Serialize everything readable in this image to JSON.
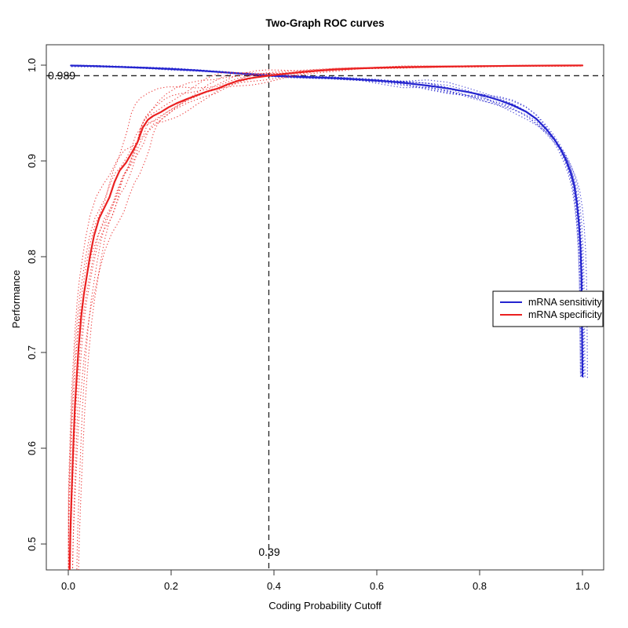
{
  "chart_data": {
    "type": "line",
    "title": "Two-Graph ROC curves",
    "xlabel": "Coding Probability Cutoff",
    "ylabel": "Performance",
    "xlim": [
      0.0,
      1.0
    ],
    "ylim": [
      0.5,
      1.0
    ],
    "grid": false,
    "background": "#ffffff",
    "x_tick_values": [
      0.0,
      0.2,
      0.4,
      0.6,
      0.8,
      1.0
    ],
    "x_tick_labels": [
      "0.0",
      "0.2",
      "0.4",
      "0.6",
      "0.8",
      "1.0"
    ],
    "y_tick_values": [
      0.5,
      0.6,
      0.7,
      0.8,
      0.9,
      1.0
    ],
    "y_tick_labels": [
      "0.5",
      "0.6",
      "0.7",
      "0.8",
      "0.9",
      "1.0"
    ],
    "annotations": {
      "hline": {
        "y": 0.989,
        "label": "0.989",
        "style": "dashed",
        "color": "#222222"
      },
      "vline": {
        "x": 0.39,
        "label": "0.39",
        "style": "dashed",
        "color": "#222222"
      }
    },
    "legend": {
      "position": "right-middle",
      "entries": [
        {
          "label": "mRNA sensitivity",
          "color": "#2424cf"
        },
        {
          "label": "mRNA specificity",
          "color": "#ea2020"
        }
      ]
    },
    "series": [
      {
        "name": "mRNA sensitivity",
        "color": "#2424cf",
        "mean_style": "solid",
        "points": [
          [
            0.005,
            0.9996
          ],
          [
            0.05,
            0.999
          ],
          [
            0.1,
            0.9981
          ],
          [
            0.15,
            0.9972
          ],
          [
            0.2,
            0.996
          ],
          [
            0.25,
            0.9945
          ],
          [
            0.3,
            0.9926
          ],
          [
            0.35,
            0.9906
          ],
          [
            0.39,
            0.989
          ],
          [
            0.43,
            0.9882
          ],
          [
            0.47,
            0.9874
          ],
          [
            0.51,
            0.9866
          ],
          [
            0.55,
            0.9856
          ],
          [
            0.6,
            0.984
          ],
          [
            0.65,
            0.9816
          ],
          [
            0.7,
            0.9786
          ],
          [
            0.74,
            0.9756
          ],
          [
            0.78,
            0.9716
          ],
          [
            0.81,
            0.968
          ],
          [
            0.84,
            0.963
          ],
          [
            0.865,
            0.958
          ],
          [
            0.89,
            0.9515
          ],
          [
            0.91,
            0.944
          ],
          [
            0.93,
            0.933
          ],
          [
            0.945,
            0.923
          ],
          [
            0.958,
            0.912
          ],
          [
            0.968,
            0.901
          ],
          [
            0.977,
            0.888
          ],
          [
            0.984,
            0.874
          ],
          [
            0.989,
            0.856
          ],
          [
            0.993,
            0.835
          ],
          [
            0.996,
            0.81
          ],
          [
            0.998,
            0.78
          ],
          [
            0.999,
            0.735
          ],
          [
            1.0,
            0.675
          ]
        ],
        "replicates": {
          "count": 9,
          "seed": 11,
          "style": "dotted",
          "spread": {
            "base_x": 0.002,
            "x_amp": 0.009,
            "x_center": 0.975,
            "x_width": 0.05,
            "base_y": 0.001,
            "y_amp": 0.0065,
            "y_center": 0.82,
            "y_width": 0.22
          }
        }
      },
      {
        "name": "mRNA specificity",
        "color": "#ea2020",
        "mean_style": "solid",
        "points": [
          [
            0.002,
            0.45
          ],
          [
            0.004,
            0.51
          ],
          [
            0.006,
            0.545
          ],
          [
            0.008,
            0.575
          ],
          [
            0.01,
            0.605
          ],
          [
            0.013,
            0.645
          ],
          [
            0.016,
            0.672
          ],
          [
            0.02,
            0.705
          ],
          [
            0.025,
            0.737
          ],
          [
            0.03,
            0.76
          ],
          [
            0.036,
            0.78
          ],
          [
            0.042,
            0.8
          ],
          [
            0.05,
            0.822
          ],
          [
            0.06,
            0.84
          ],
          [
            0.07,
            0.851
          ],
          [
            0.08,
            0.862
          ],
          [
            0.09,
            0.878
          ],
          [
            0.1,
            0.89
          ],
          [
            0.112,
            0.898
          ],
          [
            0.125,
            0.91
          ],
          [
            0.135,
            0.92
          ],
          [
            0.145,
            0.935
          ],
          [
            0.155,
            0.943
          ],
          [
            0.165,
            0.947
          ],
          [
            0.18,
            0.951
          ],
          [
            0.195,
            0.956
          ],
          [
            0.21,
            0.96
          ],
          [
            0.23,
            0.9645
          ],
          [
            0.25,
            0.9685
          ],
          [
            0.27,
            0.9725
          ],
          [
            0.29,
            0.9755
          ],
          [
            0.31,
            0.98
          ],
          [
            0.33,
            0.9835
          ],
          [
            0.35,
            0.986
          ],
          [
            0.37,
            0.9876
          ],
          [
            0.39,
            0.989
          ],
          [
            0.42,
            0.9908
          ],
          [
            0.45,
            0.9925
          ],
          [
            0.48,
            0.994
          ],
          [
            0.52,
            0.9955
          ],
          [
            0.56,
            0.9965
          ],
          [
            0.6,
            0.9972
          ],
          [
            0.65,
            0.9978
          ],
          [
            0.7,
            0.9982
          ],
          [
            0.75,
            0.9986
          ],
          [
            0.8,
            0.9989
          ],
          [
            0.85,
            0.9992
          ],
          [
            0.9,
            0.9994
          ],
          [
            0.95,
            0.9996
          ],
          [
            1.0,
            0.9997
          ]
        ],
        "replicates": {
          "count": 9,
          "seed": 23,
          "style": "dotted",
          "spread": {
            "base_x": 0.002,
            "x_amp": 0.03,
            "x_center": 0.15,
            "x_width": 0.17,
            "base_y": 0.0008,
            "y_amp": 0.02,
            "y_center": 0.17,
            "y_width": 0.2
          }
        }
      }
    ]
  }
}
